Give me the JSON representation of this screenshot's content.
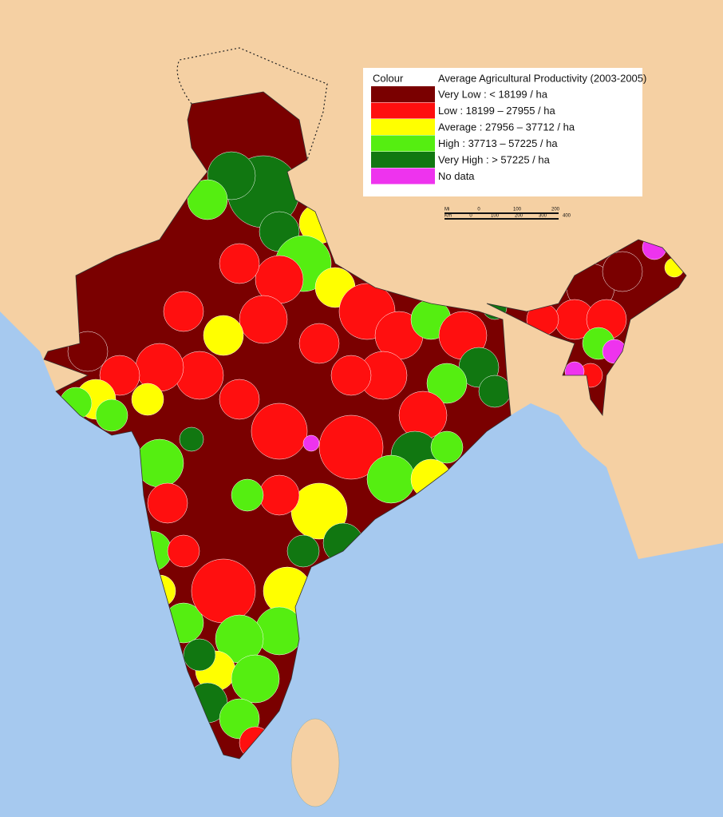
{
  "legend": {
    "header": [
      "Colour",
      "Average Agricultural Productivity (2003-2005)"
    ],
    "items": [
      {
        "label": "Very Low : < 18199 / ha",
        "color": "#7a0000"
      },
      {
        "label": "Low :  18199 – 27955 / ha",
        "color": "#ff0f0f"
      },
      {
        "label": "Average : 27956 – 37712 / ha",
        "color": "#ffff00"
      },
      {
        "label": "High : 37713 – 57225 / ha",
        "color": "#55ee11"
      },
      {
        "label": "Very High : > 57225  / ha",
        "color": "#117711"
      },
      {
        "label": "No data",
        "color": "#ee33ee"
      }
    ]
  },
  "scale_bar": {
    "mi_unit": "Mi",
    "mi_labels": [
      "0",
      "100",
      "200"
    ],
    "km_unit": "Km",
    "km_labels": [
      "0",
      "100",
      "200",
      "300",
      "400"
    ]
  }
}
